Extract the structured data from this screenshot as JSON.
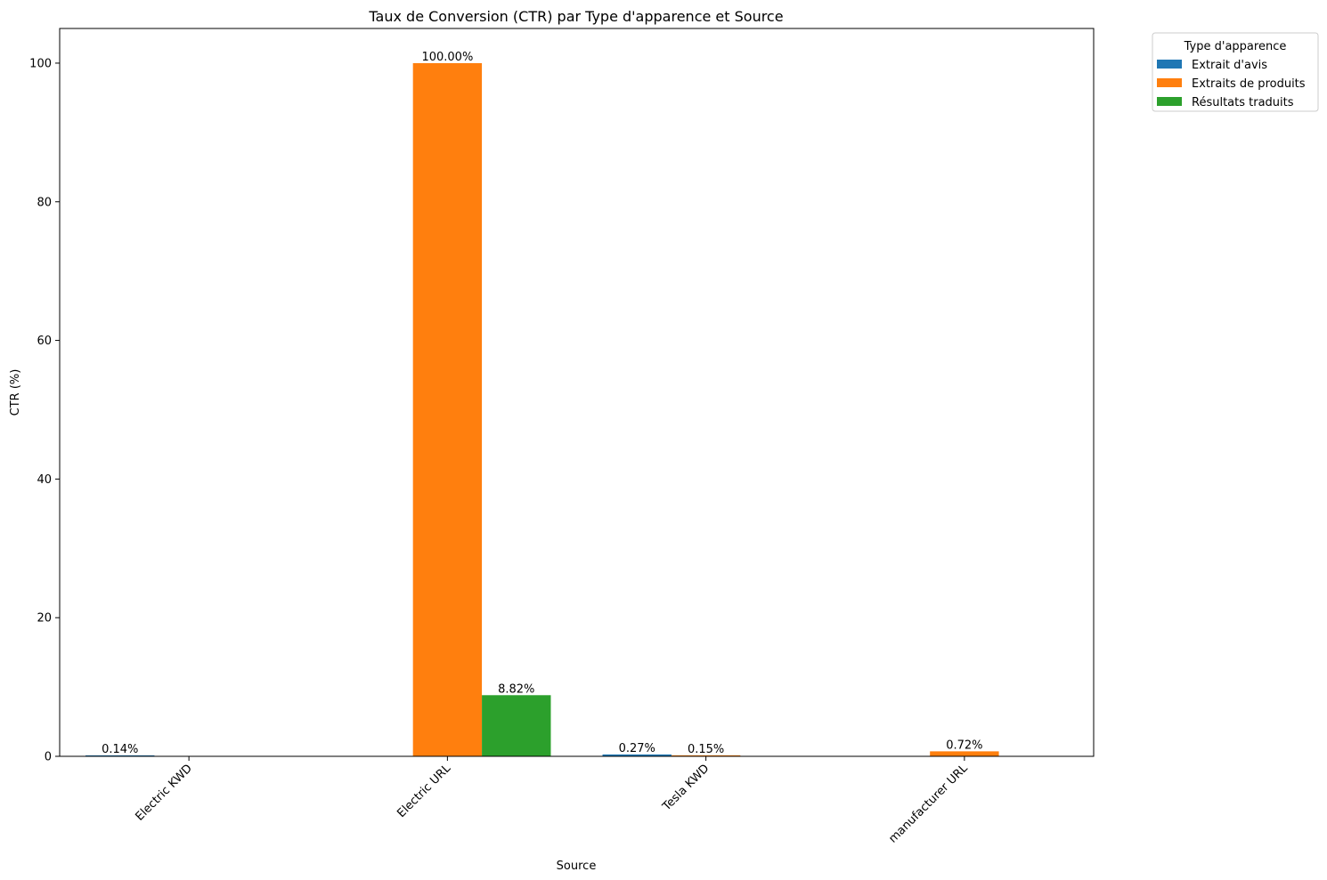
{
  "chart_data": {
    "type": "bar",
    "title": "Taux de Conversion (CTR) par Type d'apparence et Source",
    "xlabel": "Source",
    "ylabel": "CTR (%)",
    "ylim": [
      0,
      105
    ],
    "yticks": [
      0,
      20,
      40,
      60,
      80,
      100
    ],
    "grid": false,
    "categories": [
      "Electric KWD",
      "Electric URL",
      "Tesla KWD",
      "manufacturer URL"
    ],
    "legend": {
      "title": "Type d'apparence",
      "placement": "outside-top-right"
    },
    "series": [
      {
        "name": "Extrait d'avis",
        "color": "#1f77b4",
        "values": [
          0.14,
          null,
          0.27,
          null
        ],
        "labels": [
          "0.14%",
          null,
          "0.27%",
          null
        ]
      },
      {
        "name": "Extraits de produits",
        "color": "#ff7f0e",
        "values": [
          null,
          100.0,
          0.15,
          0.72
        ],
        "labels": [
          null,
          "100.00%",
          "0.15%",
          "0.72%"
        ]
      },
      {
        "name": "Résultats traduits",
        "color": "#2ca02c",
        "values": [
          null,
          8.82,
          null,
          null
        ],
        "labels": [
          null,
          "8.82%",
          null,
          null
        ]
      }
    ]
  }
}
